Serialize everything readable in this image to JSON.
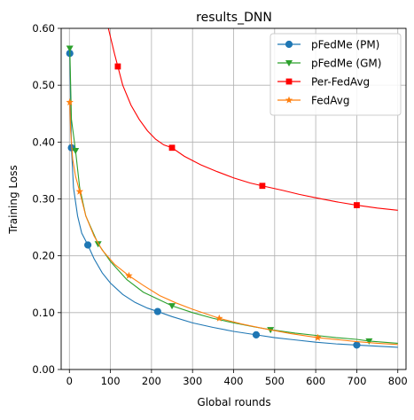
{
  "chart_data": {
    "type": "line",
    "title": "results_DNN",
    "xlabel": "Global rounds",
    "ylabel": "Training Loss",
    "xlim": [
      -20,
      820
    ],
    "ylim": [
      0.0,
      0.6
    ],
    "xticks": [
      0,
      100,
      200,
      300,
      400,
      500,
      600,
      700,
      800
    ],
    "yticks": [
      0.0,
      0.1,
      0.2,
      0.3,
      0.4,
      0.5,
      0.6
    ],
    "ytick_labels": [
      "0.00",
      "0.10",
      "0.20",
      "0.30",
      "0.40",
      "0.50",
      "0.60"
    ],
    "grid": true,
    "legend": "top-right",
    "series": [
      {
        "name": "pFedMe (PM)",
        "color": "#1f77b4",
        "marker": "circle",
        "x": [
          1,
          5,
          10,
          20,
          30,
          45,
          60,
          80,
          100,
          130,
          160,
          190,
          215,
          250,
          300,
          350,
          400,
          455,
          500,
          550,
          600,
          650,
          700,
          750,
          800
        ],
        "y": [
          0.556,
          0.39,
          0.32,
          0.27,
          0.24,
          0.219,
          0.195,
          0.17,
          0.152,
          0.132,
          0.118,
          0.108,
          0.102,
          0.093,
          0.082,
          0.074,
          0.067,
          0.061,
          0.056,
          0.052,
          0.048,
          0.045,
          0.043,
          0.041,
          0.039
        ],
        "markers_x": [
          1,
          5,
          45,
          215,
          455,
          700
        ]
      },
      {
        "name": "pFedMe (GM)",
        "color": "#2ca02c",
        "marker": "triangle-down",
        "x": [
          1,
          5,
          15,
          25,
          40,
          70,
          100,
          140,
          180,
          250,
          300,
          350,
          400,
          450,
          490,
          550,
          600,
          650,
          700,
          730,
          800
        ],
        "y": [
          0.565,
          0.44,
          0.385,
          0.32,
          0.27,
          0.221,
          0.19,
          0.158,
          0.136,
          0.112,
          0.1,
          0.09,
          0.082,
          0.075,
          0.07,
          0.064,
          0.06,
          0.056,
          0.053,
          0.05,
          0.046
        ],
        "markers_x": [
          1,
          15,
          70,
          250,
          490,
          730
        ]
      },
      {
        "name": "Per-FedAvg",
        "color": "#ff0000",
        "marker": "square",
        "x": [
          95,
          100,
          110,
          118,
          130,
          150,
          170,
          190,
          210,
          230,
          250,
          280,
          320,
          360,
          400,
          440,
          470,
          520,
          560,
          600,
          650,
          700,
          750,
          800
        ],
        "y": [
          0.6,
          0.585,
          0.555,
          0.533,
          0.5,
          0.465,
          0.44,
          0.42,
          0.405,
          0.395,
          0.39,
          0.375,
          0.36,
          0.348,
          0.337,
          0.328,
          0.323,
          0.315,
          0.308,
          0.302,
          0.295,
          0.289,
          0.284,
          0.28
        ],
        "markers_x": [
          118,
          250,
          470,
          700
        ]
      },
      {
        "name": "FedAvg",
        "color": "#ff7f0e",
        "marker": "star",
        "x": [
          1,
          3,
          8,
          15,
          25,
          40,
          60,
          80,
          110,
          145,
          180,
          220,
          260,
          300,
          365,
          420,
          480,
          540,
          605,
          660,
          700,
          750,
          800
        ],
        "y": [
          0.47,
          0.42,
          0.37,
          0.34,
          0.313,
          0.27,
          0.235,
          0.21,
          0.185,
          0.165,
          0.148,
          0.13,
          0.117,
          0.106,
          0.09,
          0.08,
          0.071,
          0.063,
          0.056,
          0.052,
          0.049,
          0.046,
          0.044
        ],
        "markers_x": [
          1,
          25,
          145,
          365,
          605
        ]
      }
    ]
  }
}
